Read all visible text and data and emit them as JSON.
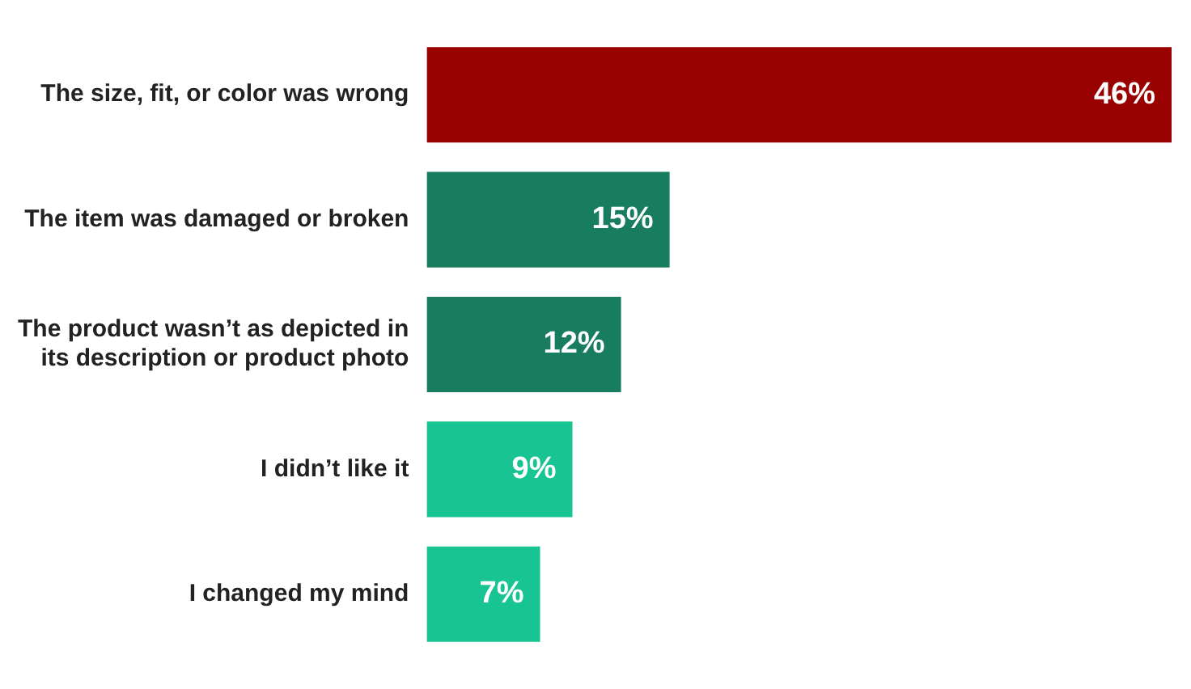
{
  "chart_data": {
    "type": "bar",
    "orientation": "horizontal",
    "categories": [
      "The size, fit, or color was wrong",
      "The item was damaged or broken",
      "The product wasn’t as depicted in its description or product photo",
      "I didn’t like it",
      "I changed my mind"
    ],
    "values": [
      46,
      15,
      12,
      9,
      7
    ],
    "colors": [
      "#990000",
      "#187d5f",
      "#187d5f",
      "#18c491",
      "#18c491"
    ],
    "value_labels": [
      "46%",
      "15%",
      "12%",
      "9%",
      "7%"
    ],
    "legend": false,
    "tick_labels": "y"
  }
}
